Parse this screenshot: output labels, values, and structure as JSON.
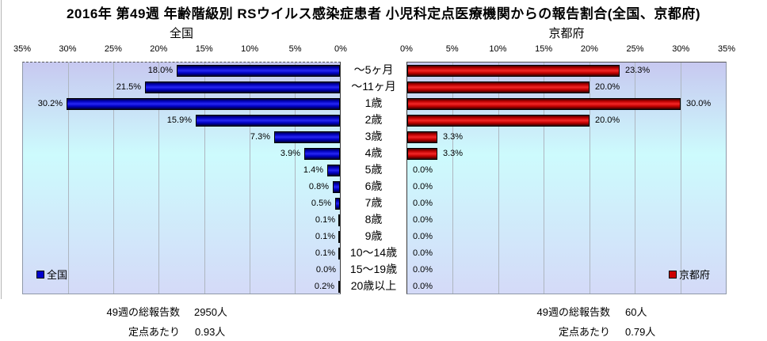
{
  "title": "2016年 第49週 年齢階級別 RSウイルス感染症患者 小児科定点医療機関からの報告割合(全国、京都府)",
  "chart_data": {
    "type": "bar",
    "layout": "butterfly-horizontal",
    "title": "2016年 第49週 年齢階級別 RSウイルス感染症患者 小児科定点医療機関からの報告割合(全国、京都府)",
    "subtitle_left": "全国",
    "subtitle_right": "京都府",
    "categories": [
      "〜5ヶ月",
      "〜11ヶ月",
      "1歳",
      "2歳",
      "3歳",
      "4歳",
      "5歳",
      "6歳",
      "7歳",
      "8歳",
      "9歳",
      "10〜14歳",
      "15〜19歳",
      "20歳以上"
    ],
    "series": [
      {
        "name": "全国",
        "side": "left",
        "color": "#0000cc",
        "values": [
          18.0,
          21.5,
          30.2,
          15.9,
          7.3,
          3.9,
          1.4,
          0.8,
          0.5,
          0.1,
          0.1,
          0.1,
          0.0,
          0.2
        ]
      },
      {
        "name": "京都府",
        "side": "right",
        "color": "#cc0000",
        "values": [
          23.3,
          20.0,
          30.0,
          20.0,
          3.3,
          3.3,
          0.0,
          0.0,
          0.0,
          0.0,
          0.0,
          0.0,
          0.0,
          0.0
        ]
      }
    ],
    "xlim": [
      0,
      35
    ],
    "tick_step": 5,
    "ticks_left": [
      "35%",
      "30%",
      "25%",
      "20%",
      "15%",
      "10%",
      "5%",
      "0%"
    ],
    "ticks_right": [
      "0%",
      "5%",
      "10%",
      "15%",
      "20%",
      "25%",
      "30%",
      "35%"
    ],
    "grid": true,
    "value_label_suffix": "%",
    "legend_left": "全国",
    "legend_right": "京都府"
  },
  "footers": {
    "left": {
      "total_label": "49週の総報告数",
      "total_value": "2950人",
      "per_label": "定点あたり",
      "per_value": "0.93人"
    },
    "right": {
      "total_label": "49週の総報告数",
      "total_value": "60人",
      "per_label": "定点あたり",
      "per_value": "0.79人"
    }
  },
  "colors": {
    "bar_blue": "#0000cc",
    "bar_red": "#cc0000",
    "plot_bg_top": "#c7c8f0",
    "plot_bg_mid": "#cdfbfd",
    "plot_bg_bottom": "#d4daf8",
    "gridline": "#aeb6c0"
  }
}
